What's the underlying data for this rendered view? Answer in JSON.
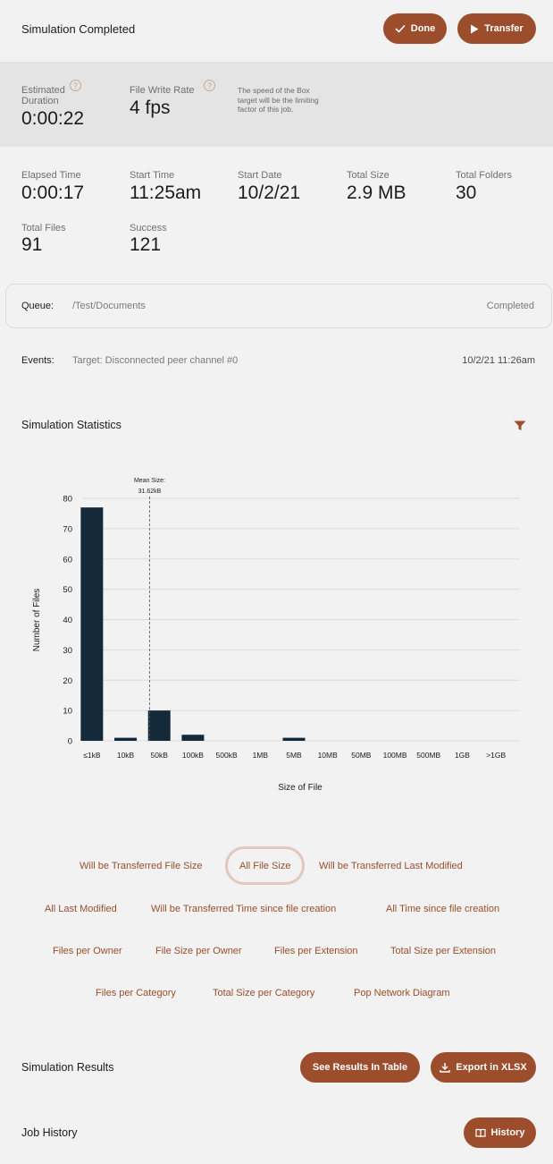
{
  "header": {
    "title": "Simulation Completed",
    "done_label": "Done",
    "transfer_label": "Transfer"
  },
  "estimate": {
    "duration_label": "Estimated Duration",
    "duration_value": "0:00:22",
    "rate_label": "File Write Rate",
    "rate_value": "4 fps",
    "help_glyph": "?",
    "note": "The speed of the Box target will be the limiting factor of this job."
  },
  "stats": [
    {
      "label": "Elapsed Time",
      "value": "0:00:17"
    },
    {
      "label": "Start Time",
      "value": "11:25am"
    },
    {
      "label": "Start Date",
      "value": "10/2/21"
    },
    {
      "label": "Total Size",
      "value": "2.9 MB"
    },
    {
      "label": "Total Folders",
      "value": "30"
    },
    {
      "label": "Total Files",
      "value": "91"
    },
    {
      "label": "Success",
      "value": "121"
    }
  ],
  "queue": {
    "label": "Queue:",
    "path": "/Test/Documents",
    "status": "Completed"
  },
  "events": {
    "label": "Events:",
    "message": "Target: Disconnected peer channel #0",
    "time": "10/2/21 11:26am"
  },
  "statistics": {
    "title": "Simulation Statistics"
  },
  "chart_data": {
    "type": "bar",
    "categories": [
      "≤1kB",
      "10kB",
      "50kB",
      "100kB",
      "500kB",
      "1MB",
      "5MB",
      "10MB",
      "50MB",
      "100MB",
      "500MB",
      "1GB",
      ">1GB"
    ],
    "values": [
      77,
      1,
      10,
      2,
      0,
      0,
      1,
      0,
      0,
      0,
      0,
      0,
      0
    ],
    "xlabel": "Size of File",
    "ylabel": "Number of Files",
    "ylim": [
      0,
      80
    ],
    "yticks": [
      0,
      10,
      20,
      30,
      40,
      50,
      60,
      70,
      80
    ],
    "annotation": {
      "title": "Mean Size:",
      "value": "31.62kB",
      "x_value_kB": 31.62
    },
    "bar_color": "#142a3b",
    "grid": true
  },
  "filters": {
    "rows": [
      [
        "Will be Transferred File Size",
        "All File Size",
        "Will be Transferred Last Modified"
      ],
      [
        "All Last Modified",
        "Will be Transferred Time since file creation",
        "All Time since file creation"
      ],
      [
        "Files per Owner",
        "File Size per Owner",
        "Files per Extension",
        "Total Size per Extension"
      ],
      [
        "Files per Category",
        "Total Size per Category",
        "Pop Network Diagram"
      ]
    ],
    "active": "All File Size"
  },
  "results": {
    "title": "Simulation Results",
    "table_label": "See Results In Table",
    "export_label": "Export in XLSX"
  },
  "history": {
    "title": "Job History",
    "button_label": "History"
  },
  "colors": {
    "accent": "#9b4d2c",
    "band": "#e4e4e4",
    "background": "#f2f2f2"
  }
}
